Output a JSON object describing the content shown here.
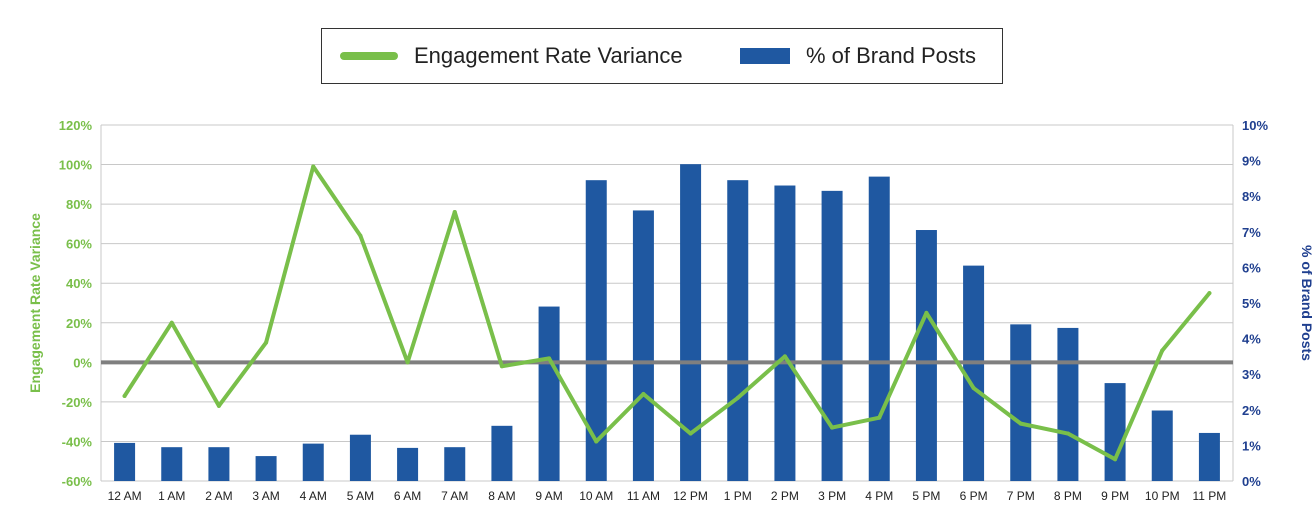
{
  "legend": {
    "line_label": "Engagement Rate Variance",
    "bar_label": "% of Brand Posts"
  },
  "chart_data": {
    "type": "bar",
    "categories": [
      "12 AM",
      "1 AM",
      "2 AM",
      "3 AM",
      "4 AM",
      "5 AM",
      "6 AM",
      "7 AM",
      "8 AM",
      "9 AM",
      "10 AM",
      "11 AM",
      "12 PM",
      "1 PM",
      "2 PM",
      "3 PM",
      "4 PM",
      "5 PM",
      "6 PM",
      "7 PM",
      "8 PM",
      "9 PM",
      "10 PM",
      "11 PM"
    ],
    "series": [
      {
        "name": "% of Brand Posts",
        "type": "bar",
        "axis": "right",
        "color": "#1f58a1",
        "values": [
          1.07,
          0.95,
          0.95,
          0.7,
          1.05,
          1.3,
          0.93,
          0.95,
          1.55,
          4.9,
          8.45,
          7.6,
          8.9,
          8.45,
          8.3,
          8.15,
          8.55,
          7.05,
          6.05,
          4.4,
          4.3,
          2.75,
          1.98,
          1.35
        ]
      },
      {
        "name": "Engagement Rate Variance",
        "type": "line",
        "axis": "left",
        "color": "#79bf4a",
        "values": [
          -17,
          20,
          -22,
          10,
          99,
          64,
          0,
          76,
          -2,
          2,
          -40,
          -16,
          -36,
          -18,
          3,
          -33,
          -28,
          25,
          -13,
          -31,
          -36,
          -49,
          6,
          35
        ]
      }
    ],
    "y_left": {
      "label": "Engagement Rate Variance",
      "ticks": [
        "-60%",
        "-40%",
        "-20%",
        "0%",
        "20%",
        "40%",
        "60%",
        "80%",
        "100%",
        "120%"
      ],
      "range": [
        -60,
        120
      ],
      "color": "#79bf4a"
    },
    "y_right": {
      "label": "% of Brand Posts",
      "ticks": [
        "0%",
        "1%",
        "2%",
        "3%",
        "4%",
        "5%",
        "6%",
        "7%",
        "8%",
        "9%",
        "10%"
      ],
      "range": [
        0,
        10
      ],
      "color": "#1f3f8f"
    },
    "zero_line_color": "#7f7f7f",
    "grid": true,
    "grid_color": "#c8c8c8",
    "legend_position": "top-center"
  }
}
